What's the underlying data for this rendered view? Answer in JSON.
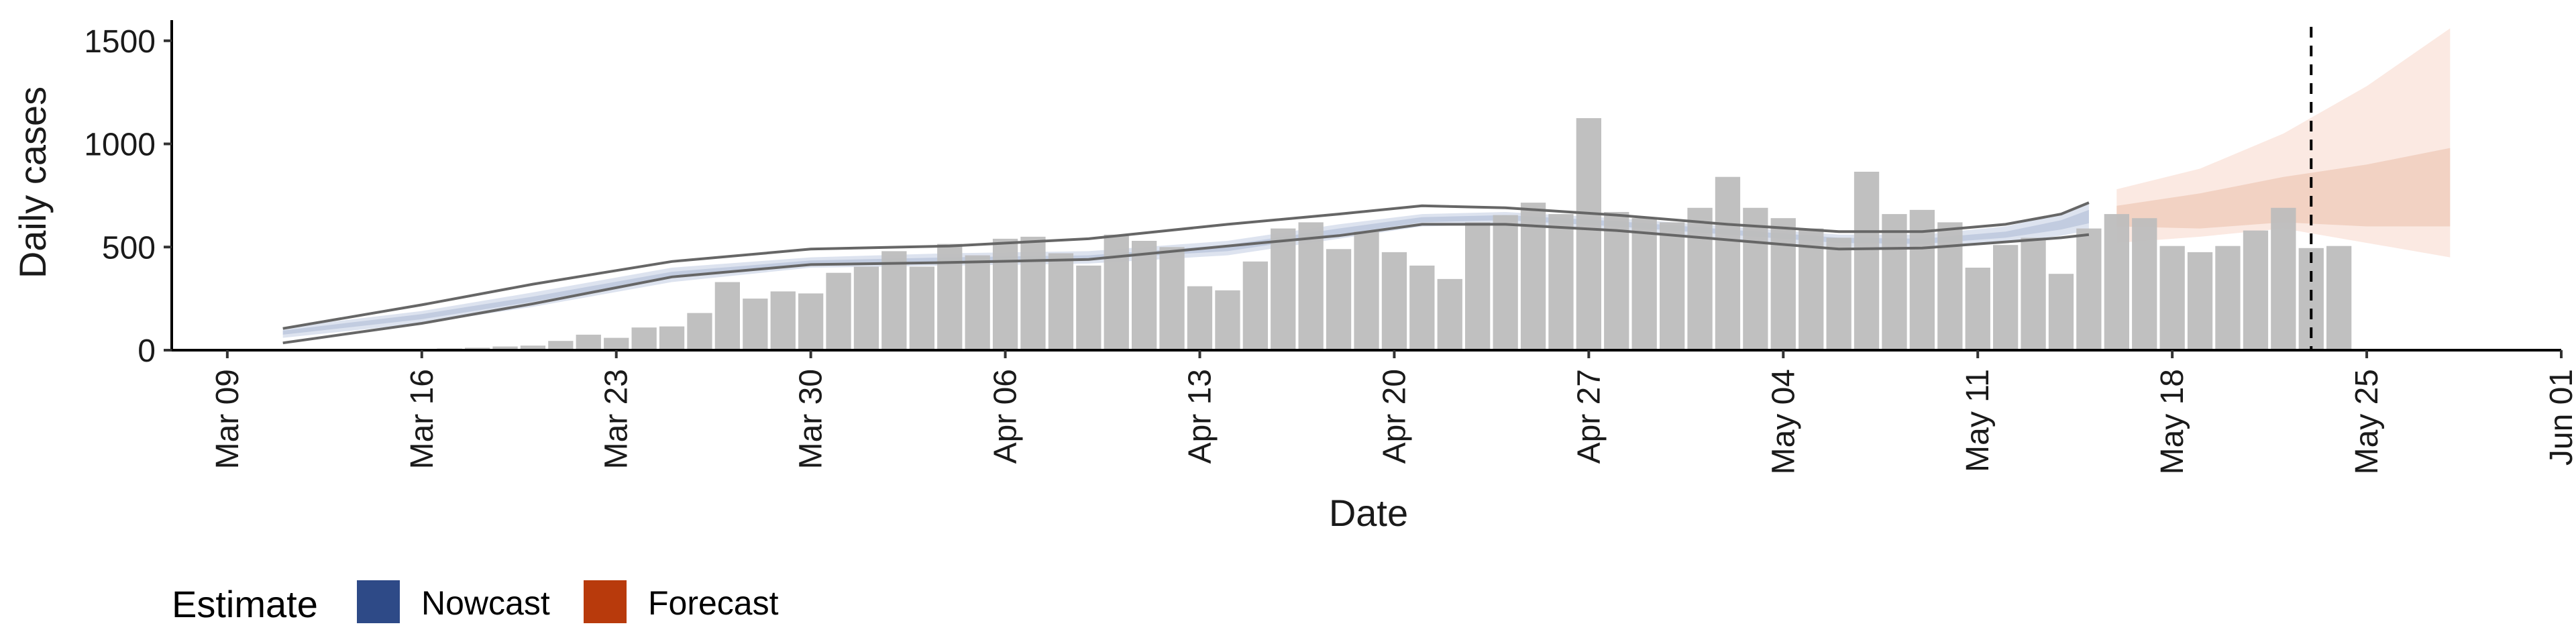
{
  "chart_data": {
    "type": "bar",
    "xlabel": "Date",
    "ylabel": "Daily cases",
    "ylim": [
      0,
      1600
    ],
    "yticks": [
      0,
      500,
      1000,
      1500
    ],
    "xlim": [
      "2020-03-07",
      "2020-06-01"
    ],
    "xticks": [
      {
        "date": "2020-03-09",
        "label": "Mar 09"
      },
      {
        "date": "2020-03-16",
        "label": "Mar 16"
      },
      {
        "date": "2020-03-23",
        "label": "Mar 23"
      },
      {
        "date": "2020-03-30",
        "label": "Mar 30"
      },
      {
        "date": "2020-04-06",
        "label": "Apr 06"
      },
      {
        "date": "2020-04-13",
        "label": "Apr 13"
      },
      {
        "date": "2020-04-20",
        "label": "Apr 20"
      },
      {
        "date": "2020-04-27",
        "label": "Apr 27"
      },
      {
        "date": "2020-05-04",
        "label": "May 04"
      },
      {
        "date": "2020-05-11",
        "label": "May 11"
      },
      {
        "date": "2020-05-18",
        "label": "May 18"
      },
      {
        "date": "2020-05-25",
        "label": "May 25"
      },
      {
        "date": "2020-06-01",
        "label": "Jun 01"
      }
    ],
    "grid": false,
    "legend": {
      "position": "bottom-left",
      "title": "Estimate",
      "items": [
        {
          "label": "Nowcast",
          "color": "#2e4a87"
        },
        {
          "label": "Forecast",
          "color": "#b83a0c"
        }
      ]
    },
    "vline_date": "2020-05-23",
    "colors": {
      "bars": "#bdbdbd",
      "nowcast_outer": "#dde3ef",
      "nowcast_inner": "#c2cce0",
      "forecast_outer": "#fbe9e2",
      "forecast_inner": "#f2d2c3",
      "lines": "#666666"
    },
    "observed_cases": {
      "start_date": "2020-03-13",
      "values": [
        2,
        4,
        5,
        5,
        8,
        12,
        18,
        22,
        45,
        75,
        60,
        110,
        115,
        180,
        330,
        250,
        285,
        275,
        375,
        405,
        480,
        405,
        515,
        460,
        540,
        550,
        470,
        410,
        560,
        530,
        500,
        310,
        290,
        430,
        590,
        620,
        490,
        575,
        475,
        410,
        345,
        620,
        655,
        715,
        660,
        1125,
        670,
        640,
        620,
        690,
        840,
        690,
        640,
        590,
        545,
        865,
        660,
        680,
        620,
        400,
        510,
        545,
        370,
        590,
        660,
        640,
        505,
        475,
        505,
        580,
        690,
        495,
        505
      ]
    },
    "nowcast_band_outer": {
      "dates": [
        "2020-03-11",
        "2020-03-16",
        "2020-03-20",
        "2020-03-25",
        "2020-03-30",
        "2020-04-04",
        "2020-04-09",
        "2020-04-14",
        "2020-04-18",
        "2020-04-21",
        "2020-04-24",
        "2020-04-28",
        "2020-05-02",
        "2020-05-06",
        "2020-05-09",
        "2020-05-12",
        "2020-05-14",
        "2020-05-15"
      ],
      "lower": [
        60,
        130,
        210,
        330,
        400,
        410,
        420,
        460,
        540,
        600,
        610,
        580,
        540,
        500,
        490,
        520,
        555,
        580
      ],
      "upper": [
        110,
        190,
        280,
        400,
        450,
        470,
        480,
        530,
        610,
        660,
        670,
        640,
        600,
        560,
        560,
        600,
        660,
        720
      ]
    },
    "nowcast_band_inner": {
      "dates": [
        "2020-03-11",
        "2020-03-16",
        "2020-03-20",
        "2020-03-25",
        "2020-03-30",
        "2020-04-04",
        "2020-04-09",
        "2020-04-14",
        "2020-04-18",
        "2020-04-21",
        "2020-04-24",
        "2020-04-28",
        "2020-05-02",
        "2020-05-06",
        "2020-05-09",
        "2020-05-12",
        "2020-05-14",
        "2020-05-15"
      ],
      "lower": [
        75,
        150,
        235,
        355,
        420,
        430,
        440,
        480,
        560,
        620,
        630,
        600,
        560,
        520,
        515,
        545,
        585,
        615
      ],
      "upper": [
        95,
        175,
        260,
        380,
        435,
        450,
        460,
        510,
        590,
        645,
        655,
        625,
        585,
        545,
        540,
        575,
        630,
        680
      ]
    },
    "upper_line": {
      "dates": [
        "2020-03-11",
        "2020-03-16",
        "2020-03-20",
        "2020-03-25",
        "2020-03-30",
        "2020-04-04",
        "2020-04-09",
        "2020-04-14",
        "2020-04-18",
        "2020-04-21",
        "2020-04-24",
        "2020-04-28",
        "2020-05-02",
        "2020-05-06",
        "2020-05-09",
        "2020-05-12",
        "2020-05-14",
        "2020-05-15"
      ],
      "values": [
        105,
        220,
        320,
        430,
        490,
        505,
        540,
        610,
        660,
        700,
        690,
        655,
        610,
        575,
        575,
        610,
        660,
        715
      ]
    },
    "lower_line": {
      "dates": [
        "2020-03-11",
        "2020-03-16",
        "2020-03-20",
        "2020-03-25",
        "2020-03-30",
        "2020-04-04",
        "2020-04-09",
        "2020-04-14",
        "2020-04-18",
        "2020-04-21",
        "2020-04-24",
        "2020-04-28",
        "2020-05-02",
        "2020-05-06",
        "2020-05-09",
        "2020-05-12",
        "2020-05-14",
        "2020-05-15"
      ],
      "values": [
        35,
        130,
        225,
        355,
        415,
        425,
        440,
        505,
        555,
        610,
        610,
        580,
        535,
        490,
        495,
        525,
        545,
        560
      ]
    },
    "forecast_band_outer": {
      "dates": [
        "2020-05-16",
        "2020-05-19",
        "2020-05-22",
        "2020-05-25",
        "2020-05-28"
      ],
      "lower": [
        520,
        550,
        590,
        520,
        450
      ],
      "upper": [
        780,
        880,
        1050,
        1280,
        1560
      ]
    },
    "forecast_band_inner": {
      "dates": [
        "2020-05-16",
        "2020-05-19",
        "2020-05-22",
        "2020-05-25",
        "2020-05-28"
      ],
      "lower": [
        600,
        590,
        620,
        600,
        600
      ],
      "upper": [
        700,
        760,
        840,
        900,
        980
      ]
    }
  }
}
